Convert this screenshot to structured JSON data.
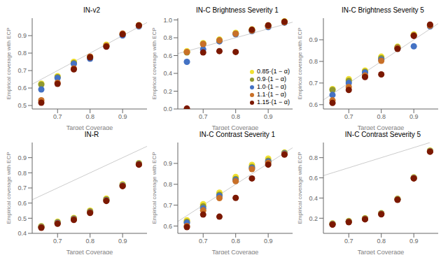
{
  "chart_data": [
    {
      "type": "scatter",
      "title": "IN-v2",
      "xlabel": "Target Coverage",
      "ylabel": "Empirical coverage with ECP",
      "x": [
        0.65,
        0.7,
        0.75,
        0.8,
        0.85,
        0.9,
        0.95
      ],
      "series": [
        {
          "color": "#f0e030",
          "values": [
            0.625,
            0.668,
            0.75,
            0.778,
            0.848,
            0.908,
            0.96
          ]
        },
        {
          "color": "#909830",
          "values": [
            0.62,
            0.662,
            0.743,
            0.772,
            0.842,
            0.905,
            0.957
          ]
        },
        {
          "color": "#4472c4",
          "values": [
            0.592,
            0.657,
            0.738,
            0.768,
            0.838,
            0.901,
            0.953
          ]
        },
        {
          "color": "#c87028",
          "values": [
            0.53,
            0.63,
            0.712,
            0.78,
            0.842,
            0.912,
            0.957
          ]
        },
        {
          "color": "#7b1800",
          "values": [
            0.516,
            0.624,
            0.707,
            0.776,
            0.837,
            0.908,
            0.959
          ]
        }
      ],
      "xlim": [
        0.622,
        0.975
      ],
      "xticks": [
        0.7,
        0.8,
        0.9
      ],
      "ylim": [
        0.48,
        1.0
      ],
      "yticks": [
        0.5,
        0.6,
        0.7,
        0.8,
        0.9
      ]
    },
    {
      "type": "scatter",
      "title": "IN-C Brightness Severity 1",
      "xlabel": "Target Coverage",
      "ylabel": "Empirical coverage with ECP",
      "x": [
        0.65,
        0.7,
        0.75,
        0.8,
        0.85,
        0.9,
        0.95
      ],
      "series": [
        {
          "name": "0.85·(1 − α)",
          "color": "#f0e030",
          "values": [
            0.65,
            0.74,
            0.78,
            0.855,
            0.895,
            0.94,
            0.985
          ]
        },
        {
          "name": "0.9·(1 − α)",
          "color": "#909830",
          "values": [
            0.635,
            0.73,
            0.77,
            0.845,
            0.88,
            0.93,
            0.975
          ]
        },
        {
          "name": "1.0·(1 − α)",
          "color": "#4472c4",
          "values": [
            0.53,
            0.67,
            0.76,
            0.84,
            0.875,
            0.92,
            0.97
          ]
        },
        {
          "name": "1.1·(1 − α)",
          "color": "#c87028",
          "values": [
            0.64,
            0.73,
            0.77,
            0.845,
            0.88,
            0.93,
            0.975
          ]
        },
        {
          "name": "1.15·(1 − α)",
          "color": "#7b1800",
          "values": [
            0.005,
            0.635,
            0.65,
            0.64,
            0.89,
            0.94,
            0.98
          ]
        }
      ],
      "xlim": [
        0.622,
        0.975
      ],
      "xticks": [
        0.7,
        0.8,
        0.9
      ],
      "ylim": [
        0.0,
        1.02
      ],
      "yticks": [
        {
          "value": 0,
          "label": "0.0"
        },
        0.2,
        0.4,
        0.6,
        0.8,
        {
          "value": 1,
          "label": "1.0"
        }
      ],
      "legend": "lower right"
    },
    {
      "type": "scatter",
      "title": "IN-C Brightness Severity 5",
      "xlabel": "Target Coverage",
      "ylabel": "Empirical coverage with ECP",
      "x": [
        0.65,
        0.7,
        0.75,
        0.8,
        0.85,
        0.9,
        0.95
      ],
      "series": [
        {
          "color": "#f0e030",
          "values": [
            0.672,
            0.718,
            0.758,
            0.822,
            0.868,
            0.925,
            0.968
          ]
        },
        {
          "color": "#909830",
          "values": [
            0.668,
            0.71,
            0.752,
            0.815,
            0.865,
            0.922,
            0.965
          ]
        },
        {
          "color": "#4472c4",
          "values": [
            0.645,
            0.7,
            0.748,
            0.808,
            0.86,
            0.87,
            0.962
          ]
        },
        {
          "color": "#c87028",
          "values": [
            0.62,
            0.682,
            0.735,
            0.803,
            0.862,
            0.92,
            0.965
          ]
        },
        {
          "color": "#7b1800",
          "values": [
            0.608,
            0.668,
            0.728,
            0.74,
            0.858,
            0.918,
            0.97
          ]
        }
      ],
      "xlim": [
        0.622,
        0.975
      ],
      "xticks": [
        0.7,
        0.8,
        0.9
      ],
      "ylim": [
        0.58,
        1.0
      ],
      "yticks": [
        0.6,
        0.7,
        0.8,
        0.9
      ]
    },
    {
      "type": "scatter",
      "title": "IN-R",
      "xlabel": "Target Coverage",
      "ylabel": "Empirical coverage with ECP",
      "x": [
        0.65,
        0.7,
        0.75,
        0.8,
        0.85,
        0.9,
        0.95
      ],
      "series": [
        {
          "color": "#f0e030",
          "values": [
            0.447,
            0.477,
            0.502,
            0.55,
            0.63,
            0.724,
            0.864
          ]
        },
        {
          "color": "#909830",
          "values": [
            0.445,
            0.473,
            0.498,
            0.545,
            0.624,
            0.72,
            0.861
          ]
        },
        {
          "color": "#4472c4",
          "values": [
            0.442,
            0.469,
            0.494,
            0.54,
            0.619,
            0.716,
            0.858
          ]
        },
        {
          "color": "#c87028",
          "values": [
            0.44,
            0.466,
            0.492,
            0.538,
            0.617,
            0.714,
            0.856
          ]
        },
        {
          "color": "#7b1800",
          "values": [
            0.437,
            0.463,
            0.489,
            0.535,
            0.614,
            0.712,
            0.854
          ]
        }
      ],
      "xlim": [
        0.622,
        0.975
      ],
      "xticks": [
        0.7,
        0.8,
        0.9
      ],
      "ylim": [
        0.4,
        1.0
      ],
      "yticks": [
        0.4,
        0.5,
        0.6,
        0.7,
        0.8,
        0.9
      ]
    },
    {
      "type": "scatter",
      "title": "IN-C Contrast Severity 1",
      "xlabel": "Target Coverage",
      "ylabel": "Empirical coverage with ECP",
      "x": [
        0.65,
        0.7,
        0.75,
        0.8,
        0.85,
        0.9,
        0.95
      ],
      "series": [
        {
          "color": "#f0e030",
          "values": [
            0.628,
            0.705,
            0.76,
            0.835,
            0.893,
            0.923,
            0.952
          ]
        },
        {
          "color": "#909830",
          "values": [
            0.62,
            0.695,
            0.75,
            0.825,
            0.883,
            0.913,
            0.95
          ]
        },
        {
          "color": "#4472c4",
          "values": [
            0.615,
            0.685,
            0.744,
            0.82,
            0.878,
            0.908,
            0.947
          ]
        },
        {
          "color": "#c87028",
          "values": [
            0.6,
            0.675,
            0.734,
            0.815,
            0.873,
            0.903,
            0.944
          ]
        },
        {
          "color": "#7b1800",
          "values": [
            0.595,
            0.655,
            0.645,
            0.735,
            0.828,
            0.894,
            0.942
          ]
        }
      ],
      "xlim": [
        0.622,
        0.975
      ],
      "xticks": [
        0.7,
        0.8,
        0.9
      ],
      "ylim": [
        0.565,
        1.0
      ],
      "yticks": [
        0.6,
        0.7,
        0.8,
        0.9
      ]
    },
    {
      "type": "scatter",
      "title": "IN-C Contrast Severity 5",
      "xlabel": "Target Coverage",
      "ylabel": "Empirical coverage with ECP",
      "x": [
        0.65,
        0.7,
        0.75,
        0.8,
        0.85,
        0.9,
        0.95
      ],
      "series": [
        {
          "color": "#f0e030",
          "values": [
            0.148,
            0.172,
            0.2,
            0.25,
            0.393,
            0.605,
            0.87
          ]
        },
        {
          "color": "#909830",
          "values": [
            0.145,
            0.169,
            0.197,
            0.247,
            0.39,
            0.602,
            0.867
          ]
        },
        {
          "color": "#4472c4",
          "values": [
            0.142,
            0.166,
            0.194,
            0.244,
            0.387,
            0.599,
            0.864
          ]
        },
        {
          "color": "#c87028",
          "values": [
            0.14,
            0.164,
            0.192,
            0.242,
            0.385,
            0.597,
            0.862
          ]
        },
        {
          "color": "#7b1800",
          "values": [
            0.137,
            0.161,
            0.189,
            0.239,
            0.382,
            0.594,
            0.859
          ]
        }
      ],
      "xlim": [
        0.622,
        0.975
      ],
      "xticks": [
        0.7,
        0.8,
        0.9
      ],
      "ylim": [
        0.05,
        0.95
      ],
      "yticks": [
        0.2,
        0.4,
        0.6,
        0.8
      ]
    }
  ]
}
